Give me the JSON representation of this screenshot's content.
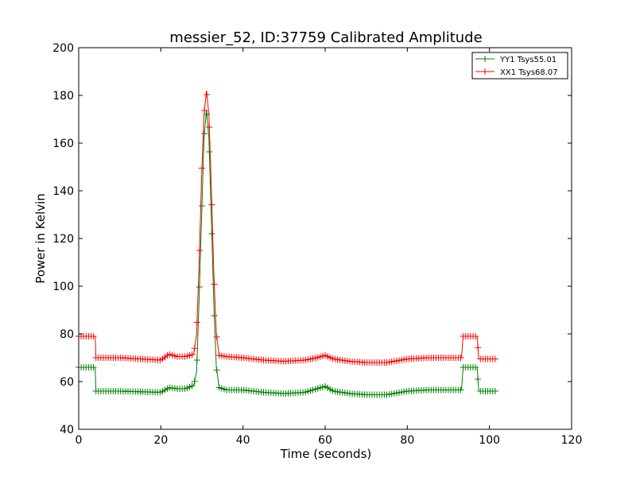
{
  "chart_data": {
    "type": "line",
    "title": "messier_52, ID:37759 Calibrated Amplitude",
    "xlabel": "Time (seconds)",
    "ylabel": "Power in Kelvin",
    "xlim": [
      0,
      120
    ],
    "ylim": [
      40,
      200
    ],
    "xticks": [
      "0",
      "20",
      "40",
      "60",
      "80",
      "100",
      "120"
    ],
    "yticks": [
      "40",
      "60",
      "80",
      "100",
      "120",
      "140",
      "160",
      "180",
      "200"
    ],
    "grid": false,
    "legend_position": "top-right",
    "marker": "+",
    "series": [
      {
        "name": "YY1 Tsys55.01",
        "color": "#008000",
        "points": [
          [
            0,
            66
          ],
          [
            4,
            66
          ],
          [
            4.2,
            56
          ],
          [
            10,
            56
          ],
          [
            20,
            55.5
          ],
          [
            22,
            57.5
          ],
          [
            24,
            57
          ],
          [
            26,
            57
          ],
          [
            28,
            58.5
          ],
          [
            28.7,
            64
          ],
          [
            29.3,
            94
          ],
          [
            29.9,
            128
          ],
          [
            30.5,
            162
          ],
          [
            31.1,
            174
          ],
          [
            31.7,
            162
          ],
          [
            32.3,
            128
          ],
          [
            32.9,
            92
          ],
          [
            33.5,
            66
          ],
          [
            34.2,
            57.5
          ],
          [
            36,
            56.5
          ],
          [
            40,
            56.5
          ],
          [
            45,
            55.5
          ],
          [
            50,
            55
          ],
          [
            55,
            55.5
          ],
          [
            58,
            57
          ],
          [
            60,
            58
          ],
          [
            62,
            56
          ],
          [
            66,
            55
          ],
          [
            70,
            54.5
          ],
          [
            75,
            54.5
          ],
          [
            80,
            56
          ],
          [
            85,
            56.5
          ],
          [
            90,
            56.5
          ],
          [
            93.2,
            56.5
          ],
          [
            93.6,
            66
          ],
          [
            97,
            66
          ],
          [
            97.4,
            56
          ],
          [
            101.6,
            56
          ]
        ]
      },
      {
        "name": "XX1 Tsys68.07",
        "color": "#ff0000",
        "points": [
          [
            0,
            79
          ],
          [
            4,
            79
          ],
          [
            4.2,
            70
          ],
          [
            10,
            70
          ],
          [
            20,
            69
          ],
          [
            22,
            71.5
          ],
          [
            24,
            70.5
          ],
          [
            26,
            70.5
          ],
          [
            28,
            71.5
          ],
          [
            28.7,
            80
          ],
          [
            29.3,
            109
          ],
          [
            29.9,
            145
          ],
          [
            30.5,
            172
          ],
          [
            31.1,
            182
          ],
          [
            31.7,
            172
          ],
          [
            32.3,
            140
          ],
          [
            32.9,
            105
          ],
          [
            33.5,
            80
          ],
          [
            34.2,
            71
          ],
          [
            36,
            70.5
          ],
          [
            40,
            70
          ],
          [
            45,
            69
          ],
          [
            50,
            68.5
          ],
          [
            55,
            69
          ],
          [
            58,
            70
          ],
          [
            60,
            71
          ],
          [
            62,
            69.5
          ],
          [
            66,
            68.5
          ],
          [
            70,
            68
          ],
          [
            75,
            68
          ],
          [
            80,
            69.5
          ],
          [
            85,
            70
          ],
          [
            90,
            70
          ],
          [
            93.2,
            70
          ],
          [
            93.6,
            79
          ],
          [
            97,
            79
          ],
          [
            97.4,
            69.5
          ],
          [
            101.6,
            69.5
          ]
        ]
      }
    ]
  }
}
